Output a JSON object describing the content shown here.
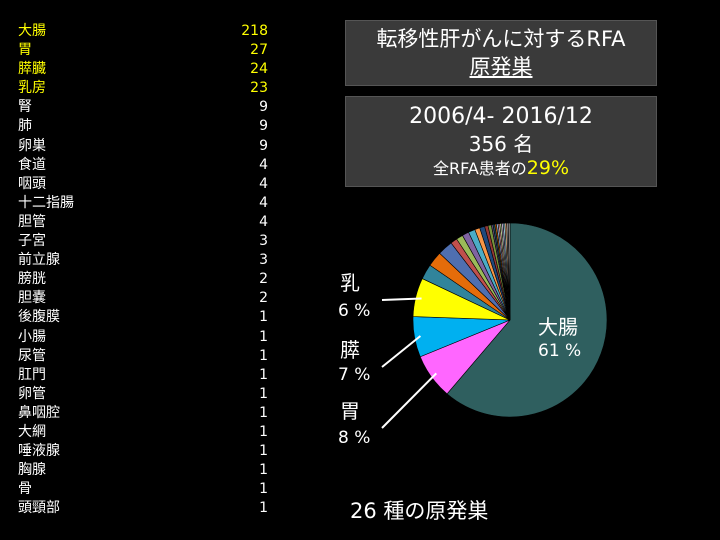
{
  "title": {
    "line1": "転移性肝がんに対するRFA",
    "line2": "原発巣"
  },
  "summary": {
    "period": "2006/4- 2016/12",
    "count": "356 名",
    "ratio_prefix": "全RFA患者の",
    "ratio_value": "29%"
  },
  "footer": "26 種の原発巣",
  "colors": {
    "highlight": "#ffff00",
    "box_bg": "#3a3a3a",
    "colon": "#2f5f5f",
    "stomach": "#ff66ff",
    "pancreas": "#00b0f0",
    "breast": "#ffff00"
  },
  "sites": [
    {
      "name": "大腸",
      "count": "218",
      "highlight": true
    },
    {
      "name": "胃",
      "count": "27",
      "highlight": true
    },
    {
      "name": "膵臓",
      "count": "24",
      "highlight": true
    },
    {
      "name": "乳房",
      "count": "23",
      "highlight": true
    },
    {
      "name": "腎",
      "count": "9"
    },
    {
      "name": "肺",
      "count": "9"
    },
    {
      "name": "卵巣",
      "count": "9"
    },
    {
      "name": "食道",
      "count": "4"
    },
    {
      "name": "咽頭",
      "count": "4"
    },
    {
      "name": "十二指腸",
      "count": "4"
    },
    {
      "name": "胆管",
      "count": "4"
    },
    {
      "name": "子宮",
      "count": "3"
    },
    {
      "name": "前立腺",
      "count": "3"
    },
    {
      "name": "膀胱",
      "count": "2"
    },
    {
      "name": "胆嚢",
      "count": "2"
    },
    {
      "name": "後腹膜",
      "count": "1"
    },
    {
      "name": "小腸",
      "count": "1"
    },
    {
      "name": "尿管",
      "count": "1"
    },
    {
      "name": "肛門",
      "count": "1"
    },
    {
      "name": "卵管",
      "count": "1"
    },
    {
      "name": "鼻咽腔",
      "count": "1"
    },
    {
      "name": "大網",
      "count": "1"
    },
    {
      "name": "唾液腺",
      "count": "1"
    },
    {
      "name": "胸腺",
      "count": "1"
    },
    {
      "name": "骨",
      "count": "1"
    },
    {
      "name": "頭頸部",
      "count": "1"
    }
  ],
  "chart_data": {
    "type": "pie",
    "total": 356,
    "slices": [
      {
        "category": "大腸",
        "value": 218,
        "color": "#2f5f5f",
        "label": "大腸",
        "percent_label": "61 %"
      },
      {
        "category": "胃",
        "value": 27,
        "color": "#ff66ff",
        "label": "胃",
        "percent_label": "8 %"
      },
      {
        "category": "膵臓",
        "value": 24,
        "color": "#00b0f0",
        "label": "膵",
        "percent_label": "7 %"
      },
      {
        "category": "乳房",
        "value": 23,
        "color": "#ffff00",
        "label": "乳",
        "percent_label": "6 %"
      },
      {
        "category": "腎",
        "value": 9,
        "color": "#31849b"
      },
      {
        "category": "肺",
        "value": 9,
        "color": "#e46c0a"
      },
      {
        "category": "卵巣",
        "value": 9,
        "color": "#4f6fb0"
      },
      {
        "category": "食道",
        "value": 4,
        "color": "#c0504d"
      },
      {
        "category": "咽頭",
        "value": 4,
        "color": "#9bbb59"
      },
      {
        "category": "十二指腸",
        "value": 4,
        "color": "#8064a2"
      },
      {
        "category": "胆管",
        "value": 4,
        "color": "#4bacc6"
      },
      {
        "category": "子宮",
        "value": 3,
        "color": "#f79646"
      },
      {
        "category": "前立腺",
        "value": 3,
        "color": "#1f497d"
      },
      {
        "category": "膀胱",
        "value": 2,
        "color": "#953735"
      },
      {
        "category": "胆嚢",
        "value": 2,
        "color": "#77933c"
      },
      {
        "category": "後腹膜",
        "value": 1,
        "color": "#604a7b"
      },
      {
        "category": "小腸",
        "value": 1,
        "color": "#215968"
      },
      {
        "category": "尿管",
        "value": 1,
        "color": "#b65708"
      },
      {
        "category": "肛門",
        "value": 1,
        "color": "#8db3e2"
      },
      {
        "category": "卵管",
        "value": 1,
        "color": "#d99694"
      },
      {
        "category": "鼻咽腔",
        "value": 1,
        "color": "#c3d69b"
      },
      {
        "category": "大網",
        "value": 1,
        "color": "#b3a2c7"
      },
      {
        "category": "唾液腺",
        "value": 1,
        "color": "#93cddd"
      },
      {
        "category": "胸腺",
        "value": 1,
        "color": "#fac090"
      },
      {
        "category": "骨",
        "value": 1,
        "color": "#7f7f7f"
      },
      {
        "category": "頭頸部",
        "value": 1,
        "color": "#a6a6a6"
      }
    ]
  }
}
